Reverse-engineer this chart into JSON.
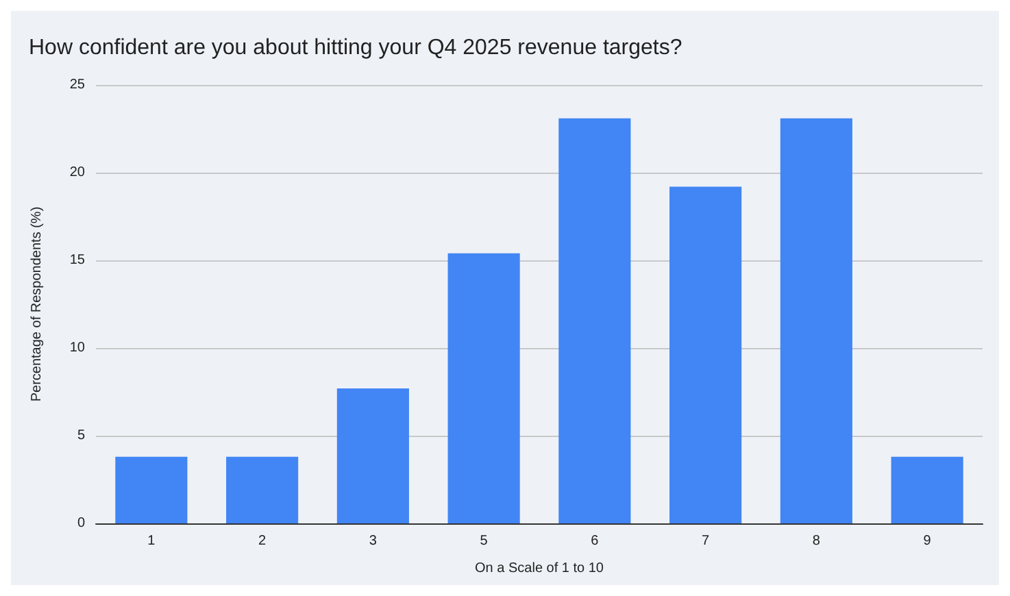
{
  "chart_data": {
    "type": "bar",
    "title": "How confident are you about hitting your Q4 2025 revenue targets?",
    "xlabel": "On a Scale of 1 to 10",
    "ylabel": "Percentage of Respondents (%)",
    "categories": [
      "1",
      "2",
      "3",
      "5",
      "6",
      "7",
      "8",
      "9"
    ],
    "values": [
      3.8,
      3.8,
      7.7,
      15.4,
      23.1,
      19.2,
      23.1,
      3.8
    ],
    "color": "#4285f4",
    "ylim": [
      0,
      25
    ],
    "yticks": [
      0,
      5,
      10,
      15,
      20,
      25
    ],
    "grid": "y"
  }
}
